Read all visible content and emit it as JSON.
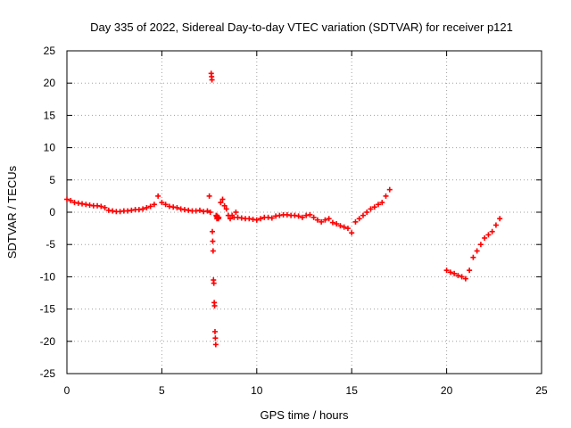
{
  "chart_data": {
    "type": "scatter",
    "title": "Day 335 of 2022, Sidereal Day-to-day VTEC variation (SDTVAR) for receiver p121",
    "xlabel": "GPS time / hours",
    "ylabel": "SDTVAR / TECUs",
    "xlim": [
      0,
      25
    ],
    "ylim": [
      -25,
      25
    ],
    "xticks": [
      "0",
      "5",
      "10",
      "15",
      "20",
      "25"
    ],
    "yticks": [
      "25",
      "20",
      "15",
      "10",
      "5",
      "0",
      "-5",
      "-10",
      "-15",
      "-20",
      "-25"
    ],
    "grid": true,
    "marker": "+",
    "color": "#ff0000",
    "series": [
      {
        "name": "SDTVAR",
        "x": [
          0.0,
          0.2,
          0.4,
          0.6,
          0.8,
          1.0,
          1.2,
          1.4,
          1.6,
          1.8,
          2.0,
          2.2,
          2.4,
          2.6,
          2.8,
          3.0,
          3.2,
          3.4,
          3.6,
          3.8,
          4.0,
          4.2,
          4.4,
          4.6,
          4.8,
          5.0,
          5.2,
          5.4,
          5.6,
          5.8,
          6.0,
          6.2,
          6.4,
          6.6,
          6.8,
          7.0,
          7.2,
          7.4,
          7.5,
          7.55,
          7.6,
          7.62,
          7.64,
          7.66,
          7.68,
          7.7,
          7.72,
          7.74,
          7.76,
          7.78,
          7.8,
          7.82,
          7.84,
          7.86,
          7.88,
          7.9,
          7.92,
          7.94,
          7.96,
          7.98,
          8.0,
          8.1,
          8.2,
          8.3,
          8.4,
          8.5,
          8.6,
          8.7,
          8.8,
          8.9,
          9.0,
          9.2,
          9.4,
          9.6,
          9.8,
          10.0,
          10.2,
          10.4,
          10.6,
          10.8,
          11.0,
          11.2,
          11.4,
          11.6,
          11.8,
          12.0,
          12.2,
          12.4,
          12.6,
          12.8,
          13.0,
          13.2,
          13.4,
          13.6,
          13.8,
          14.0,
          14.2,
          14.4,
          14.6,
          14.8,
          15.0,
          15.2,
          15.4,
          15.6,
          15.8,
          16.0,
          16.2,
          16.4,
          16.6,
          16.8,
          17.0,
          20.0,
          20.2,
          20.4,
          20.6,
          20.8,
          21.0,
          21.2,
          21.4,
          21.6,
          21.8,
          22.0,
          22.2,
          22.4,
          22.6,
          22.8
        ],
        "y": [
          2.0,
          1.8,
          1.5,
          1.4,
          1.3,
          1.2,
          1.1,
          1.0,
          1.0,
          0.9,
          0.7,
          0.3,
          0.2,
          0.1,
          0.1,
          0.2,
          0.2,
          0.3,
          0.4,
          0.4,
          0.5,
          0.7,
          0.9,
          1.2,
          2.5,
          1.5,
          1.2,
          0.9,
          0.8,
          0.7,
          0.5,
          0.4,
          0.3,
          0.2,
          0.2,
          0.3,
          0.1,
          0.2,
          2.5,
          0.0,
          21.5,
          21.0,
          20.5,
          -3.0,
          -4.5,
          -6.0,
          -10.5,
          -11.0,
          -14.0,
          -14.5,
          -18.5,
          -19.5,
          -20.5,
          -0.5,
          -0.7,
          -1.0,
          -0.6,
          -0.8,
          -0.9,
          -1.0,
          -0.8,
          1.5,
          2.0,
          1.0,
          0.5,
          -0.5,
          -1.0,
          -0.5,
          -0.8,
          0.0,
          -0.8,
          -0.9,
          -1.0,
          -1.0,
          -1.1,
          -1.2,
          -1.0,
          -0.8,
          -0.8,
          -0.9,
          -0.6,
          -0.5,
          -0.4,
          -0.4,
          -0.5,
          -0.5,
          -0.6,
          -0.8,
          -0.5,
          -0.4,
          -0.8,
          -1.2,
          -1.5,
          -1.2,
          -1.0,
          -1.6,
          -1.8,
          -2.1,
          -2.3,
          -2.5,
          -3.2,
          -1.5,
          -1.0,
          -0.5,
          0.0,
          0.5,
          0.8,
          1.2,
          1.5,
          2.5,
          3.5,
          -9.0,
          -9.3,
          -9.5,
          -9.8,
          -10.0,
          -10.3,
          -9.0,
          -7.0,
          -6.0,
          -5.0,
          -4.0,
          -3.5,
          -3.0,
          -2.0,
          -1.0
        ]
      }
    ]
  }
}
